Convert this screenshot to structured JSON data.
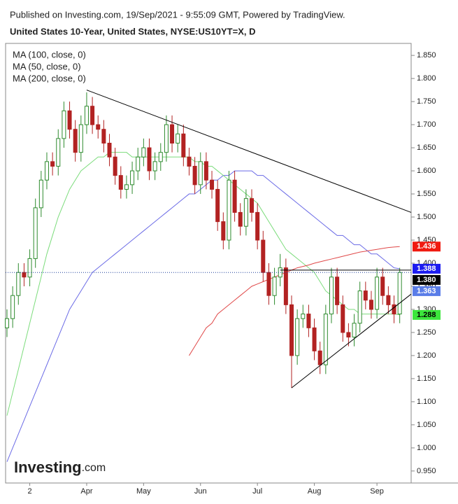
{
  "header": {
    "published": "Published on Investing.com, 19/Sep/2021 - 9:55:09 GMT, Powered by TradingView.",
    "symbol": "United States 10-Year, United States, NYSE:US10YT=X, D"
  },
  "logo": {
    "name": "Investing",
    "suffix": ".com"
  },
  "chart_data": {
    "type": "candlestick",
    "categories": [
      null,
      null,
      null,
      null,
      "2",
      null,
      null,
      null,
      null,
      null,
      null,
      null,
      null,
      null,
      "Apr",
      null,
      null,
      null,
      null,
      null,
      null,
      null,
      null,
      null,
      "May",
      null,
      null,
      null,
      null,
      null,
      null,
      null,
      null,
      null,
      "Jun",
      null,
      null,
      null,
      null,
      null,
      null,
      null,
      null,
      null,
      "Jul",
      null,
      null,
      null,
      null,
      null,
      null,
      null,
      null,
      null,
      "Aug",
      null,
      null,
      null,
      null,
      null,
      null,
      null,
      null,
      null,
      null,
      "Sep",
      null,
      null,
      null,
      null
    ],
    "open": [
      1.26,
      1.28,
      1.33,
      1.38,
      1.37,
      1.41,
      1.52,
      1.58,
      1.62,
      1.61,
      1.67,
      1.73,
      1.69,
      1.64,
      1.7,
      1.74,
      1.7,
      1.69,
      1.66,
      1.63,
      1.59,
      1.56,
      1.57,
      1.6,
      1.63,
      1.65,
      1.6,
      1.62,
      1.64,
      1.7,
      1.66,
      1.68,
      1.63,
      1.61,
      1.57,
      1.62,
      1.58,
      1.56,
      1.49,
      1.45,
      1.58,
      1.51,
      1.48,
      1.54,
      1.51,
      1.45,
      1.38,
      1.33,
      1.37,
      1.39,
      1.31,
      1.2,
      1.28,
      1.29,
      1.26,
      1.21,
      1.18,
      1.29,
      1.37,
      1.31,
      1.25,
      1.24,
      1.27,
      1.34,
      1.32,
      1.3,
      1.37,
      1.33,
      1.31,
      1.29
    ],
    "high": [
      1.3,
      1.35,
      1.4,
      1.4,
      1.43,
      1.54,
      1.6,
      1.64,
      1.64,
      1.69,
      1.75,
      1.75,
      1.71,
      1.72,
      1.77,
      1.76,
      1.72,
      1.71,
      1.68,
      1.65,
      1.61,
      1.59,
      1.62,
      1.65,
      1.67,
      1.67,
      1.64,
      1.66,
      1.72,
      1.72,
      1.7,
      1.7,
      1.65,
      1.63,
      1.64,
      1.64,
      1.6,
      1.58,
      1.51,
      1.6,
      1.6,
      1.53,
      1.56,
      1.56,
      1.53,
      1.47,
      1.4,
      1.39,
      1.42,
      1.41,
      1.33,
      1.3,
      1.31,
      1.31,
      1.28,
      1.23,
      1.31,
      1.39,
      1.39,
      1.33,
      1.27,
      1.29,
      1.36,
      1.36,
      1.34,
      1.39,
      1.39,
      1.35,
      1.33,
      1.39
    ],
    "low": [
      1.24,
      1.26,
      1.31,
      1.35,
      1.35,
      1.39,
      1.5,
      1.56,
      1.59,
      1.59,
      1.65,
      1.67,
      1.62,
      1.62,
      1.68,
      1.68,
      1.67,
      1.64,
      1.61,
      1.57,
      1.54,
      1.54,
      1.55,
      1.58,
      1.61,
      1.58,
      1.58,
      1.6,
      1.62,
      1.64,
      1.64,
      1.61,
      1.59,
      1.55,
      1.55,
      1.56,
      1.54,
      1.47,
      1.43,
      1.43,
      1.49,
      1.46,
      1.46,
      1.49,
      1.43,
      1.36,
      1.31,
      1.31,
      1.35,
      1.29,
      1.13,
      1.18,
      1.26,
      1.24,
      1.19,
      1.16,
      1.16,
      1.27,
      1.29,
      1.23,
      1.22,
      1.22,
      1.25,
      1.3,
      1.28,
      1.28,
      1.31,
      1.29,
      1.27,
      1.27
    ],
    "close": [
      1.28,
      1.33,
      1.38,
      1.37,
      1.41,
      1.52,
      1.58,
      1.62,
      1.61,
      1.67,
      1.73,
      1.69,
      1.64,
      1.7,
      1.74,
      1.7,
      1.69,
      1.66,
      1.63,
      1.59,
      1.56,
      1.57,
      1.6,
      1.63,
      1.65,
      1.6,
      1.62,
      1.64,
      1.7,
      1.66,
      1.68,
      1.63,
      1.61,
      1.57,
      1.62,
      1.58,
      1.56,
      1.49,
      1.45,
      1.58,
      1.51,
      1.48,
      1.54,
      1.51,
      1.45,
      1.38,
      1.33,
      1.37,
      1.39,
      1.31,
      1.2,
      1.28,
      1.29,
      1.26,
      1.21,
      1.18,
      1.29,
      1.37,
      1.31,
      1.25,
      1.24,
      1.27,
      1.34,
      1.32,
      1.3,
      1.37,
      1.33,
      1.31,
      1.29,
      1.38
    ],
    "up_color": "#2e8b2e",
    "down_color": "#b22222",
    "series": [
      {
        "name": "MA (100, close, 0)",
        "color": "#6b6be6",
        "values": [
          0.97,
          1.0,
          1.03,
          1.06,
          1.09,
          1.12,
          1.15,
          1.18,
          1.21,
          1.24,
          1.27,
          1.3,
          1.32,
          1.34,
          1.36,
          1.38,
          1.39,
          1.4,
          1.41,
          1.42,
          1.43,
          1.44,
          1.45,
          1.46,
          1.47,
          1.48,
          1.49,
          1.5,
          1.51,
          1.52,
          1.53,
          1.54,
          1.55,
          1.55,
          1.56,
          1.57,
          1.58,
          1.58,
          1.59,
          1.59,
          1.6,
          1.6,
          1.6,
          1.6,
          1.59,
          1.59,
          1.58,
          1.57,
          1.56,
          1.55,
          1.54,
          1.53,
          1.52,
          1.51,
          1.5,
          1.49,
          1.48,
          1.47,
          1.46,
          1.46,
          1.45,
          1.44,
          1.44,
          1.43,
          1.42,
          1.42,
          1.41,
          1.4,
          1.39,
          1.388
        ]
      },
      {
        "name": "MA (50, close, 0)",
        "color": "#7cdc7c",
        "values": [
          1.07,
          1.12,
          1.17,
          1.22,
          1.27,
          1.32,
          1.37,
          1.42,
          1.46,
          1.5,
          1.53,
          1.56,
          1.58,
          1.6,
          1.61,
          1.62,
          1.63,
          1.63,
          1.64,
          1.64,
          1.64,
          1.64,
          1.63,
          1.63,
          1.63,
          1.63,
          1.63,
          1.63,
          1.63,
          1.63,
          1.63,
          1.63,
          1.63,
          1.62,
          1.62,
          1.61,
          1.61,
          1.6,
          1.59,
          1.58,
          1.57,
          1.56,
          1.55,
          1.54,
          1.53,
          1.51,
          1.49,
          1.47,
          1.45,
          1.43,
          1.42,
          1.41,
          1.4,
          1.39,
          1.38,
          1.36,
          1.34,
          1.33,
          1.32,
          1.31,
          1.3,
          1.3,
          1.29,
          1.29,
          1.29,
          1.29,
          1.29,
          1.29,
          1.29,
          1.288
        ]
      },
      {
        "name": "MA (200, close, 0)",
        "color": "#e04848",
        "values": [
          null,
          null,
          null,
          null,
          null,
          null,
          null,
          null,
          null,
          null,
          null,
          null,
          null,
          null,
          null,
          null,
          null,
          null,
          null,
          null,
          null,
          null,
          null,
          null,
          null,
          null,
          null,
          null,
          null,
          null,
          null,
          null,
          1.2,
          1.22,
          1.24,
          1.26,
          1.27,
          1.29,
          1.3,
          1.31,
          1.32,
          1.33,
          1.34,
          1.35,
          1.355,
          1.36,
          1.365,
          1.37,
          1.375,
          1.38,
          1.385,
          1.39,
          1.393,
          1.396,
          1.4,
          1.403,
          1.406,
          1.409,
          1.412,
          1.415,
          1.418,
          1.421,
          1.424,
          1.426,
          1.428,
          1.43,
          1.432,
          1.434,
          1.435,
          1.436
        ]
      }
    ],
    "trendlines": [
      {
        "x": [
          14,
          71
        ],
        "y": [
          1.775,
          1.51
        ]
      },
      {
        "x": [
          50,
          71
        ],
        "y": [
          1.13,
          1.333
        ]
      },
      {
        "x": [
          48,
          71
        ],
        "y": [
          1.385,
          1.385
        ]
      }
    ],
    "price_tags": [
      {
        "value": 1.436,
        "label": "1.436",
        "color": "#f01a10",
        "text_color": "#ffffff"
      },
      {
        "value": 1.388,
        "label": "1.388",
        "color": "#1c1cf0",
        "text_color": "#ffffff"
      },
      {
        "value": 1.38,
        "label": "1.380",
        "color": "#000000",
        "text_color": "#ffffff",
        "line": "dotted"
      },
      {
        "value": 1.363,
        "label": "1.363",
        "color": "#5a7de8",
        "text_color": "#ffffff"
      },
      {
        "value": 1.288,
        "label": "1.288",
        "color": "#3ce63c",
        "text_color": "#000000"
      }
    ],
    "ylim": [
      0.924,
      1.876
    ],
    "yticks": [
      {
        "value": 0.95,
        "label": "0.950"
      },
      {
        "value": 1.0,
        "label": "1.000"
      },
      {
        "value": 1.05,
        "label": "1.050"
      },
      {
        "value": 1.1,
        "label": "1.100"
      },
      {
        "value": 1.15,
        "label": "1.150"
      },
      {
        "value": 1.2,
        "label": "1.200"
      },
      {
        "value": 1.25,
        "label": "1.250"
      },
      {
        "value": 1.3,
        "label": "1.300"
      },
      {
        "value": 1.35,
        "label": "1.350"
      },
      {
        "value": 1.4,
        "label": "1.400"
      },
      {
        "value": 1.45,
        "label": "1.450"
      },
      {
        "value": 1.5,
        "label": "1.500"
      },
      {
        "value": 1.55,
        "label": "1.550"
      },
      {
        "value": 1.6,
        "label": "1.600"
      },
      {
        "value": 1.65,
        "label": "1.650"
      },
      {
        "value": 1.7,
        "label": "1.700"
      },
      {
        "value": 1.75,
        "label": "1.750"
      },
      {
        "value": 1.8,
        "label": "1.800"
      },
      {
        "value": 1.85,
        "label": "1.850"
      }
    ]
  }
}
